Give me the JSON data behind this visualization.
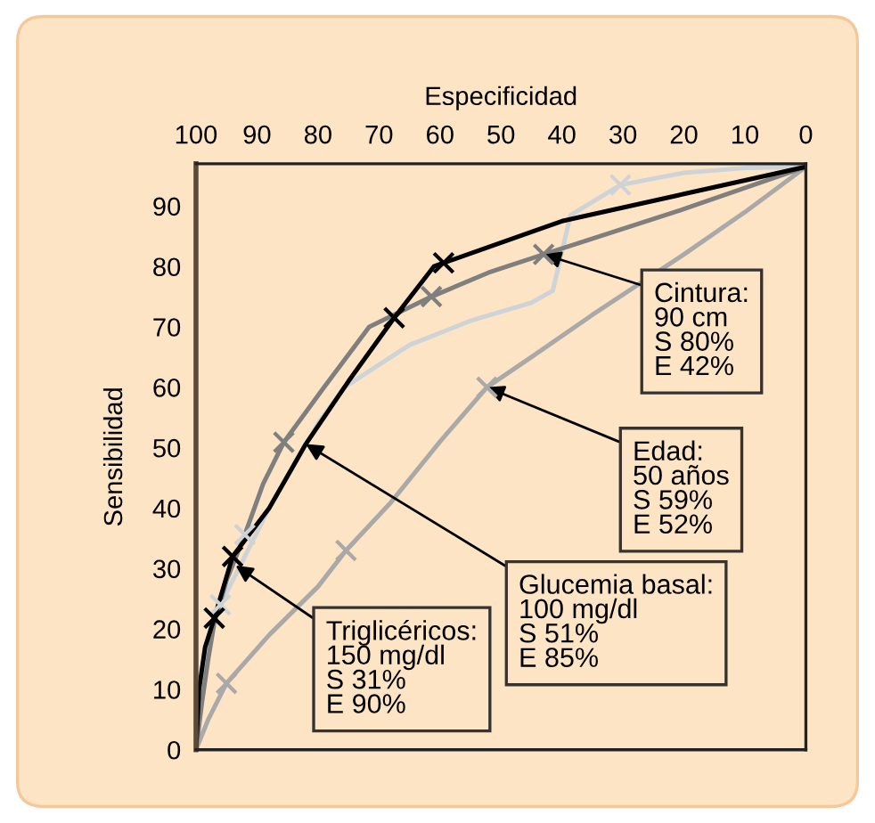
{
  "chart_data": {
    "type": "line",
    "xlabel": "Especificidad",
    "ylabel": "Sensibilidad",
    "xlim": [
      100,
      0
    ],
    "xticks": [
      100,
      90,
      80,
      70,
      60,
      50,
      40,
      30,
      20,
      10,
      0
    ],
    "ylim": [
      0,
      97
    ],
    "yticks": [
      0,
      10,
      20,
      30,
      40,
      50,
      60,
      70,
      80,
      90
    ],
    "marker": "none",
    "line_style": "solid",
    "series": [
      {
        "color": "#a9a9a9",
        "x": [
          100,
          98,
          95,
          88,
          80,
          75.4,
          68,
          60,
          52.3,
          45,
          35,
          20,
          10,
          0
        ],
        "values": [
          0,
          5,
          11,
          19,
          27,
          33,
          41,
          51,
          60,
          65,
          72,
          82,
          89,
          96.5
        ]
      },
      {
        "color": "#cdd3d6",
        "x": [
          100,
          99,
          97,
          93,
          88,
          80,
          75.7,
          65,
          55,
          45,
          41.5,
          38.6,
          30.4,
          20,
          10,
          0
        ],
        "values": [
          0,
          12,
          22,
          30,
          40,
          54,
          60,
          67,
          71,
          74,
          76,
          88.5,
          93.5,
          95.5,
          96.3,
          96.5
        ]
      },
      {
        "color": "#7f7f7f",
        "x": [
          100,
          99,
          98,
          97,
          95,
          92,
          89,
          85.6,
          79,
          71.6,
          61.4,
          52,
          43,
          20,
          0
        ],
        "values": [
          0,
          8,
          15,
          21,
          28,
          35.6,
          44,
          50.9,
          60,
          70,
          75,
          79,
          82,
          89.5,
          96.5
        ]
      },
      {
        "color": "#000000",
        "x": [
          100,
          99.5,
          98.5,
          97,
          94,
          88,
          82,
          75,
          67.5,
          61,
          59.4,
          40,
          20,
          0
        ],
        "values": [
          0,
          10,
          17,
          21.8,
          32,
          40,
          50.6,
          61,
          71.5,
          80,
          80.6,
          87.5,
          92,
          96.5
        ]
      },
      {
        "type": "scatter",
        "marker": "cross",
        "color": "#a9a9a9",
        "x": [
          95,
          75.4,
          52.3
        ],
        "values": [
          11,
          33,
          60
        ]
      },
      {
        "type": "scatter",
        "marker": "cross",
        "color": "#cdd3d6",
        "x": [
          96,
          92,
          30.4
        ],
        "values": [
          24,
          35.6,
          93.5
        ]
      },
      {
        "type": "scatter",
        "marker": "cross",
        "color": "#7f7f7f",
        "x": [
          85.6,
          61.4,
          43
        ],
        "values": [
          50.9,
          75,
          82
        ]
      },
      {
        "type": "scatter",
        "marker": "cross",
        "color": "#000000",
        "x": [
          97,
          94,
          67.5,
          59.4
        ],
        "values": [
          21.8,
          32,
          71.5,
          80.6
        ]
      }
    ],
    "annotations": [
      {
        "text": "Cintura:\n90 cm\nS 80%\nE 42%",
        "x": 43,
        "y": 82
      },
      {
        "text": "Edad:\n50 años\nS 59%\nE 52%",
        "x": 52.3,
        "y": 60
      },
      {
        "text": "Glucemia basal:\n100 mg/dl\nS 51%\nE 85%",
        "x": 82,
        "y": 50.6
      },
      {
        "text": "Triglicéricos:\n150 mg/dl\nS 31%\nE 90%",
        "x": 93.5,
        "y": 30.5
      }
    ]
  }
}
